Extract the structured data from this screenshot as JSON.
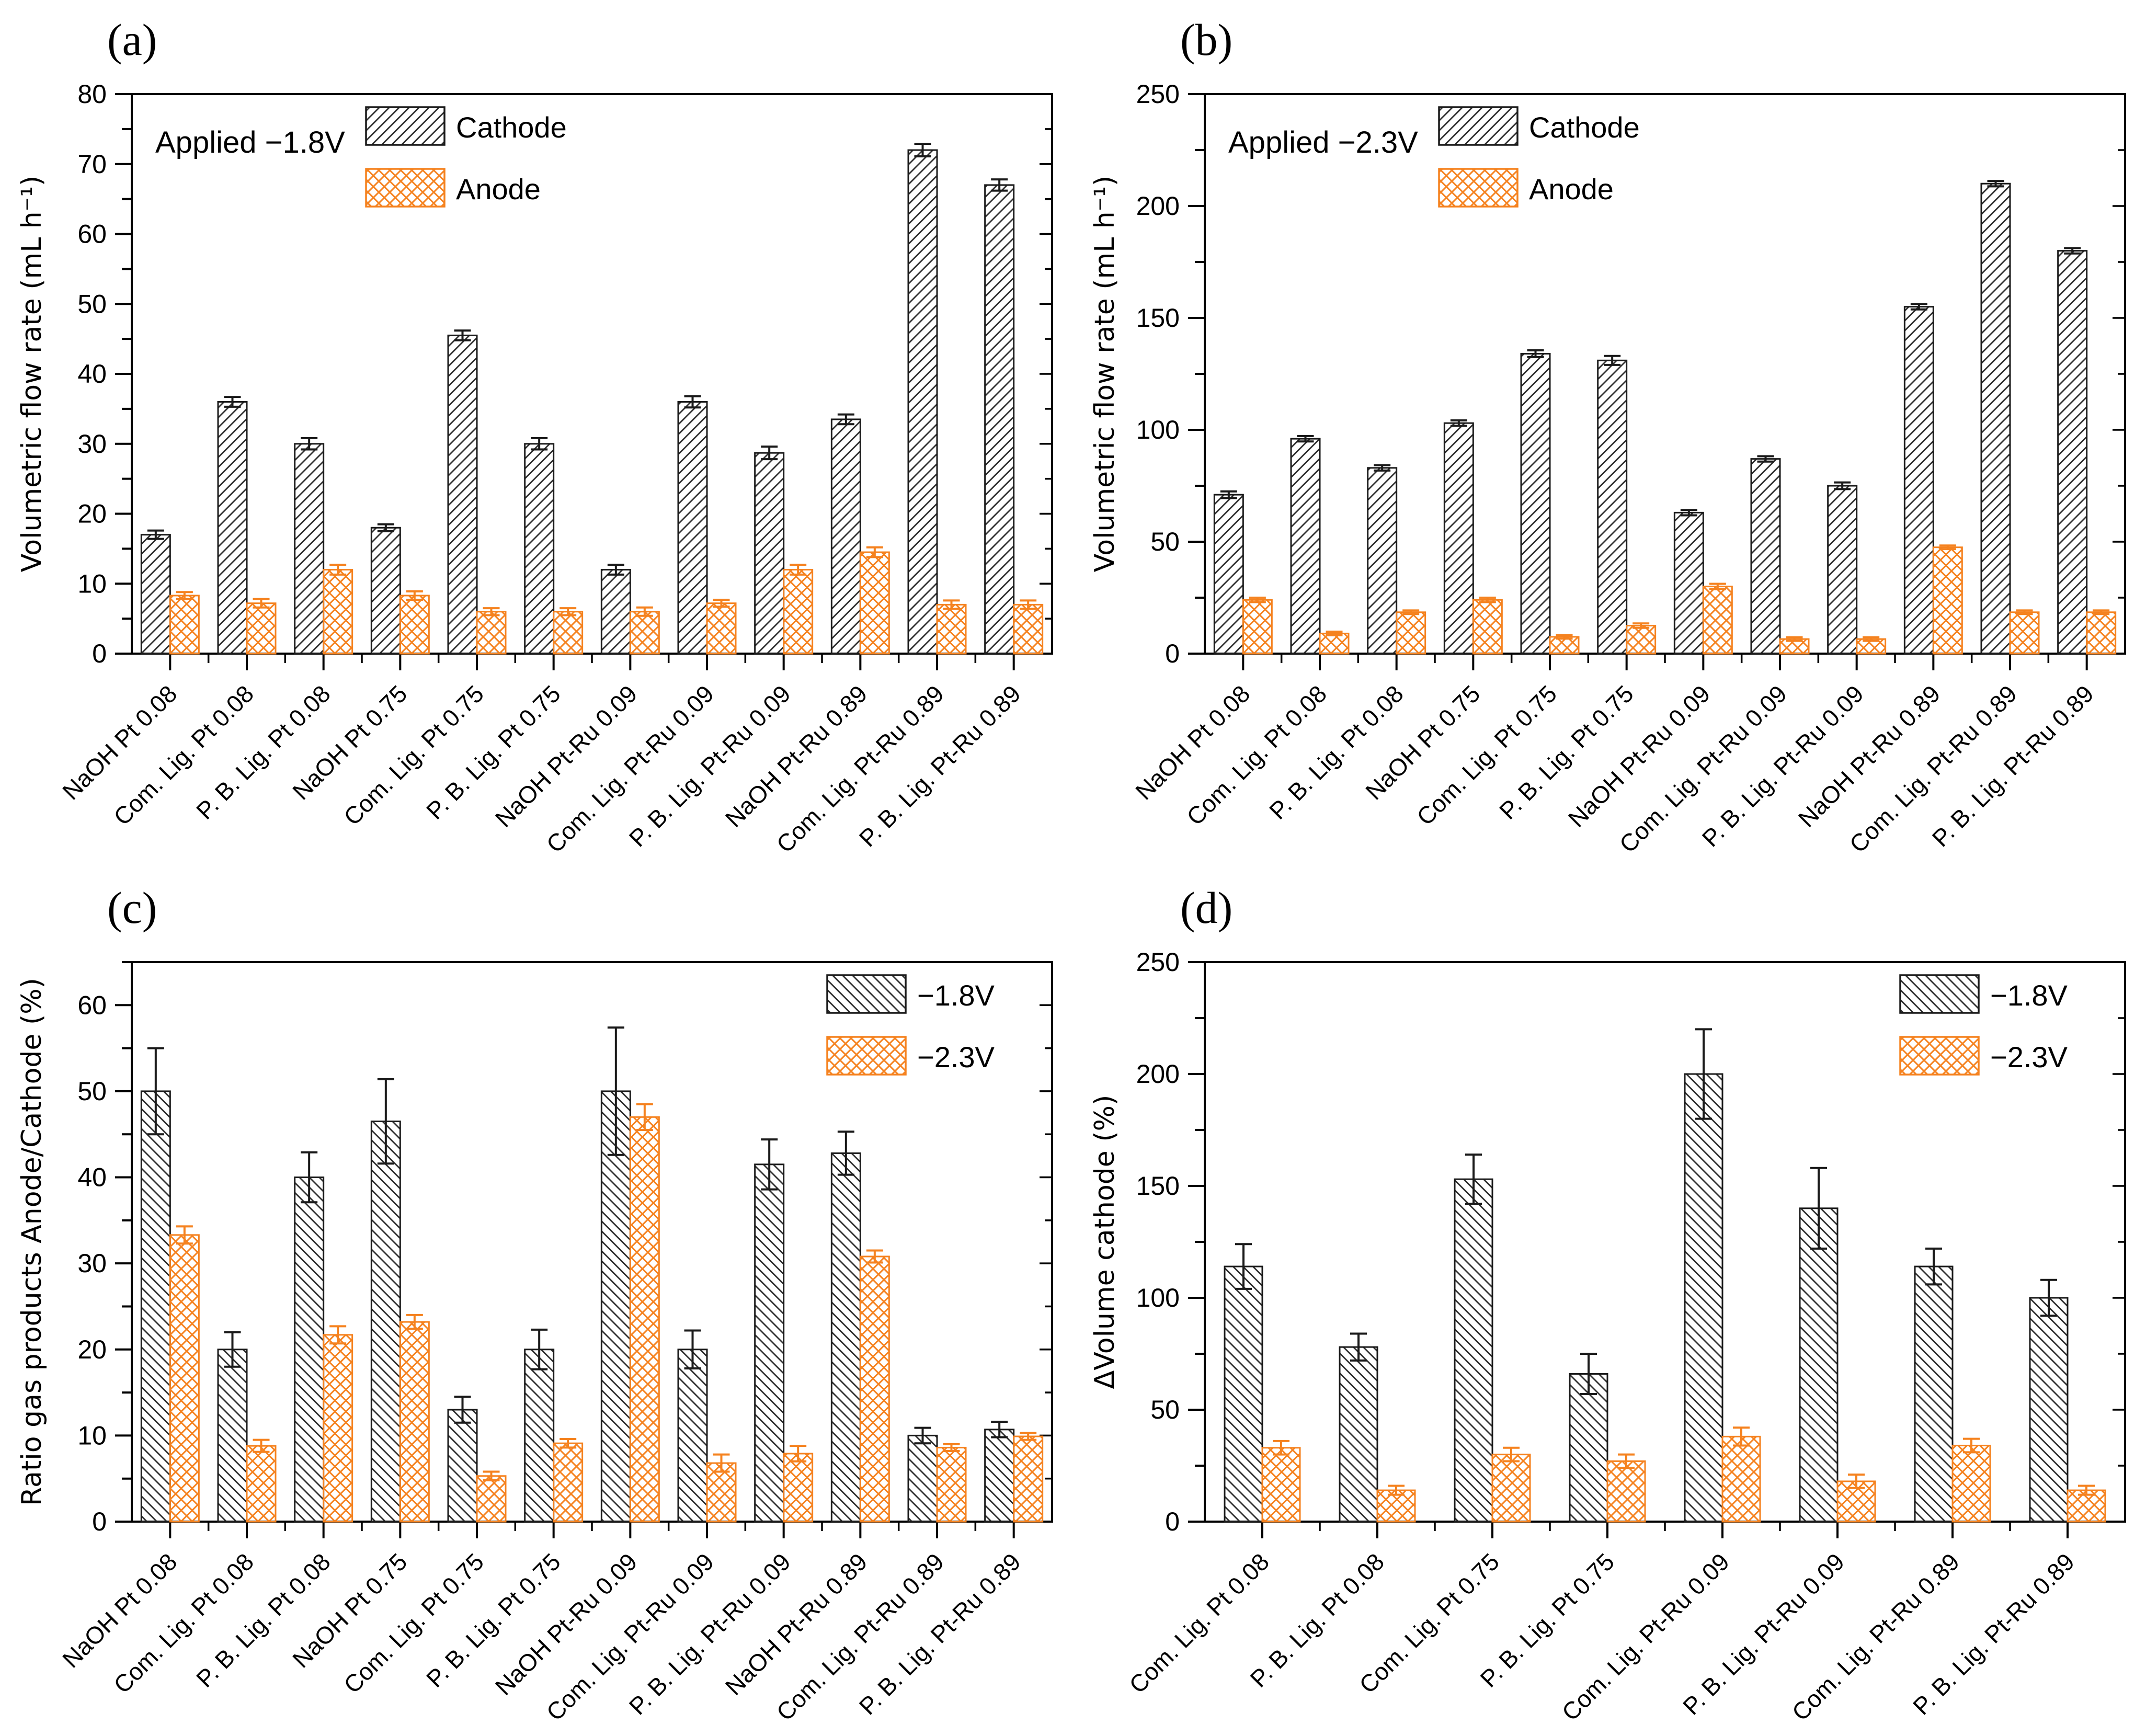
{
  "figure": {
    "kind": "four-panel scientific bar figure",
    "background": "#ffffff",
    "accent_orange": "#F5821F",
    "line_black": "#1a1a1a"
  },
  "chart_data": [
    {
      "id": "a",
      "panel_label": "(a)",
      "type": "bar",
      "annotation": "Applied −1.8V",
      "ylabel": "Volumetric flow rate (mL h⁻¹)",
      "ylim": [
        0,
        80
      ],
      "ytick_major": 10,
      "ytick_minor": 5,
      "ylabel_max": 80,
      "grid": false,
      "legend_pos": "top-center",
      "legend": [
        "Cathode",
        "Anode"
      ],
      "categories": [
        "NaOH Pt 0.08",
        "Com. Lig. Pt 0.08",
        "P. B. Lig. Pt 0.08",
        "NaOH Pt 0.75",
        "Com. Lig. Pt 0.75",
        "P. B. Lig. Pt 0.75",
        "NaOH Pt-Ru 0.09",
        "Com. Lig. Pt-Ru 0.09",
        "P. B. Lig. Pt-Ru 0.09",
        "NaOH Pt-Ru 0.89",
        "Com. Lig. Pt-Ru 0.89",
        "P. B. Lig. Pt-Ru 0.89"
      ],
      "series": [
        {
          "name": "Cathode",
          "pattern": "diag-forward",
          "color": "#1a1a1a",
          "values": [
            17,
            36,
            30,
            18,
            45.5,
            30,
            12,
            36,
            28.7,
            33.5,
            72,
            67
          ],
          "errors": [
            0.6,
            0.7,
            0.8,
            0.5,
            0.7,
            0.8,
            0.7,
            0.8,
            0.9,
            0.7,
            0.9,
            0.8
          ]
        },
        {
          "name": "Anode",
          "pattern": "cross-hatch",
          "color": "#F5821F",
          "values": [
            8.3,
            7.2,
            12,
            8.3,
            6,
            6,
            6,
            7.2,
            12,
            14.5,
            7,
            7
          ],
          "errors": [
            0.5,
            0.6,
            0.7,
            0.6,
            0.5,
            0.5,
            0.6,
            0.5,
            0.7,
            0.7,
            0.6,
            0.6
          ]
        }
      ]
    },
    {
      "id": "b",
      "panel_label": "(b)",
      "type": "bar",
      "annotation": "Applied −2.3V",
      "ylabel": "Volumetric flow rate (mL h⁻¹)",
      "ylim": [
        0,
        250
      ],
      "ytick_major": 50,
      "ytick_minor": 25,
      "ylabel_max": 250,
      "grid": false,
      "legend_pos": "top-center",
      "legend": [
        "Cathode",
        "Anode"
      ],
      "categories": [
        "NaOH Pt 0.08",
        "Com. Lig. Pt 0.08",
        "P. B. Lig. Pt 0.08",
        "NaOH Pt 0.75",
        "Com. Lig. Pt 0.75",
        "P. B. Lig. Pt 0.75",
        "NaOH Pt-Ru 0.09",
        "Com. Lig. Pt-Ru 0.09",
        "P. B. Lig. Pt-Ru 0.09",
        "NaOH Pt-Ru 0.89",
        "Com. Lig. Pt-Ru 0.89",
        "P. B. Lig. Pt-Ru 0.89"
      ],
      "series": [
        {
          "name": "Cathode",
          "pattern": "diag-forward",
          "color": "#1a1a1a",
          "values": [
            71,
            96,
            83,
            103,
            134,
            131,
            63,
            87,
            75,
            155,
            210,
            180
          ],
          "errors": [
            1.5,
            1.2,
            1.2,
            1.2,
            1.5,
            2,
            1.2,
            1.2,
            1.5,
            1.2,
            1.2,
            1.2
          ]
        },
        {
          "name": "Anode",
          "pattern": "cross-hatch",
          "color": "#F5821F",
          "values": [
            24,
            9,
            18.5,
            24,
            7.5,
            12.5,
            30,
            6.5,
            6.5,
            47.5,
            18.5,
            18.5
          ],
          "errors": [
            1,
            0.8,
            0.8,
            1,
            0.8,
            1,
            1.2,
            0.8,
            0.8,
            0.8,
            0.8,
            0.8
          ]
        }
      ]
    },
    {
      "id": "c",
      "panel_label": "(c)",
      "type": "bar",
      "annotation": "",
      "ylabel": "Ratio gas products Anode/Cathode (%)",
      "ylim": [
        0,
        65
      ],
      "ytick_major": 10,
      "ytick_minor": 5,
      "ylabel_max": 60,
      "grid": false,
      "legend_pos": "top-right",
      "legend": [
        "−1.8V",
        "−2.3V"
      ],
      "categories": [
        "NaOH Pt 0.08",
        "Com. Lig. Pt 0.08",
        "P. B. Lig. Pt 0.08",
        "NaOH Pt 0.75",
        "Com. Lig. Pt 0.75",
        "P. B. Lig. Pt 0.75",
        "NaOH Pt-Ru 0.09",
        "Com. Lig. Pt-Ru 0.09",
        "P. B. Lig. Pt-Ru 0.09",
        "NaOH Pt-Ru 0.89",
        "Com. Lig. Pt-Ru 0.89",
        "P. B. Lig. Pt-Ru 0.89"
      ],
      "series": [
        {
          "name": "−1.8V",
          "pattern": "diag-back",
          "color": "#1a1a1a",
          "values": [
            50,
            20,
            40,
            46.5,
            13,
            20,
            50,
            20,
            41.5,
            42.8,
            10,
            10.7
          ],
          "errors": [
            5,
            2,
            2.9,
            4.9,
            1.5,
            2.3,
            7.4,
            2.2,
            2.9,
            2.5,
            0.9,
            0.9
          ]
        },
        {
          "name": "−2.3V",
          "pattern": "cross-hatch",
          "color": "#F5821F",
          "values": [
            33.3,
            8.8,
            21.7,
            23.2,
            5.3,
            9.1,
            47,
            6.8,
            7.9,
            30.8,
            8.6,
            9.9
          ],
          "errors": [
            1,
            0.7,
            1,
            0.8,
            0.5,
            0.5,
            1.5,
            1,
            0.9,
            0.7,
            0.4,
            0.4
          ]
        }
      ]
    },
    {
      "id": "d",
      "panel_label": "(d)",
      "type": "bar",
      "annotation": "",
      "ylabel": "ΔVolume cathode (%)",
      "ylim": [
        0,
        250
      ],
      "ytick_major": 50,
      "ytick_minor": 25,
      "ylabel_max": 250,
      "grid": false,
      "legend_pos": "top-right",
      "legend": [
        "−1.8V",
        "−2.3V"
      ],
      "categories": [
        "Com. Lig. Pt 0.08",
        "P. B. Lig. Pt 0.08",
        "Com. Lig. Pt 0.75",
        "P. B. Lig. Pt 0.75",
        "Com. Lig. Pt-Ru 0.09",
        "P. B. Lig. Pt-Ru 0.09",
        "Com. Lig. Pt-Ru 0.89",
        "P. B. Lig. Pt-Ru 0.89"
      ],
      "series": [
        {
          "name": "−1.8V",
          "pattern": "diag-back",
          "color": "#1a1a1a",
          "values": [
            114,
            78,
            153,
            66,
            200,
            140,
            114,
            100
          ],
          "errors": [
            10,
            6,
            11,
            9,
            20,
            18,
            8,
            8
          ]
        },
        {
          "name": "−2.3V",
          "pattern": "cross-hatch",
          "color": "#F5821F",
          "values": [
            33,
            14,
            30,
            27,
            38,
            18,
            34,
            14
          ],
          "errors": [
            3,
            2,
            3,
            3,
            4,
            3,
            3,
            2
          ]
        }
      ]
    }
  ]
}
